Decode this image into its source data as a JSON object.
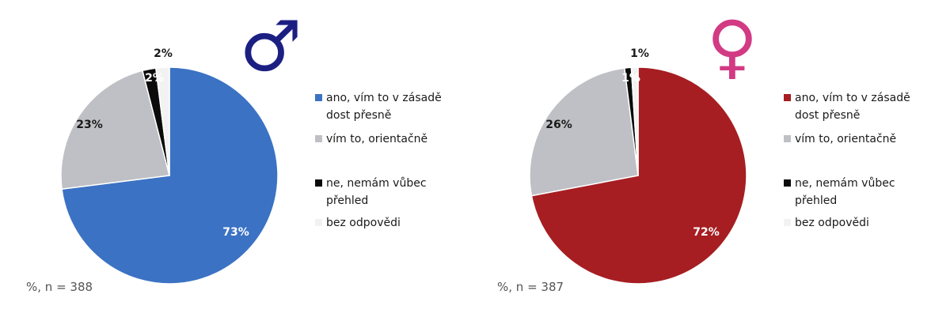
{
  "chart_data": [
    {
      "type": "pie",
      "id": "male",
      "symbol": "♂",
      "symbol_color": "#1c1f82",
      "note": "%, n = 388",
      "categories": [
        "ano, vím to v zásadě dost přesně",
        "vím to, orientačně",
        "ne, nemám vůbec přehled",
        "bez odpovědi"
      ],
      "legend_lines": [
        [
          "ano, vím to v zásadě",
          "dost přesně"
        ],
        [
          "vím to, orientačně"
        ],
        [
          "ne, nemám vůbec",
          "přehled"
        ],
        [
          "bez odpovědi"
        ]
      ],
      "values": [
        73,
        23,
        2,
        2
      ],
      "labels": [
        "73%",
        "23%",
        "2%",
        "2%"
      ],
      "colors": [
        "#3b72c4",
        "#bfc0c5",
        "#0b0b0b",
        "#f2f2f2"
      ]
    },
    {
      "type": "pie",
      "id": "female",
      "symbol": "♀",
      "symbol_color": "#d23a84",
      "note": "%, n = 387",
      "categories": [
        "ano, vím to v zásadě dost přesně",
        "vím to, orientačně",
        "ne, nemám vůbec přehled",
        "bez odpovědi"
      ],
      "legend_lines": [
        [
          "ano, vím to v zásadě",
          "dost přesně"
        ],
        [
          "vím to, orientačně"
        ],
        [
          "ne, nemám vůbec",
          "přehled"
        ],
        [
          "bez odpovědi"
        ]
      ],
      "values": [
        72,
        26,
        1,
        1
      ],
      "labels": [
        "72%",
        "26%",
        "1%",
        "1%"
      ],
      "colors": [
        "#a61e22",
        "#bfc0c5",
        "#0b0b0b",
        "#f2f2f2"
      ]
    }
  ]
}
